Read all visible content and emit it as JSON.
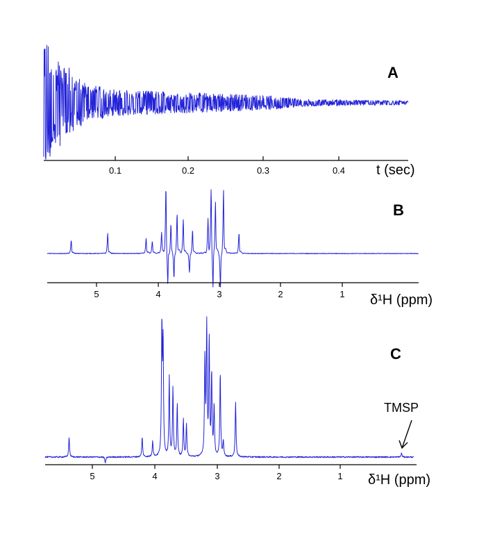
{
  "chart_data": [
    {
      "panel": "A",
      "type": "line",
      "xlabel": "t (sec)",
      "xticks": [
        "0.1",
        "0.2",
        "0.3",
        "0.4"
      ],
      "xlim": [
        0,
        0.49
      ],
      "series": [
        {
          "values_description": "FID envelope amplitude (relative)",
          "x": [
            0.0,
            0.01,
            0.02,
            0.03,
            0.04,
            0.06,
            0.1,
            0.15,
            0.2,
            0.25,
            0.3,
            0.35,
            0.4,
            0.45,
            0.49
          ],
          "y": [
            1.0,
            0.7,
            0.6,
            0.55,
            0.4,
            0.25,
            0.18,
            0.16,
            0.14,
            0.12,
            0.1,
            0.05,
            0.04,
            0.035,
            0.03
          ]
        }
      ]
    },
    {
      "panel": "B",
      "type": "line",
      "xlabel": "δ¹H (ppm)",
      "xticks": [
        "5",
        "4",
        "3",
        "2",
        "1"
      ],
      "xlim": [
        5.8,
        -0.2
      ],
      "series": [
        {
          "values_description": "phase-distorted spectrum (relative intensity)",
          "x": [
            5.41,
            4.82,
            4.2,
            4.1,
            3.95,
            3.88,
            3.85,
            3.8,
            3.75,
            3.7,
            3.6,
            3.5,
            3.45,
            3.2,
            3.15,
            3.12,
            3.08,
            3.0,
            2.95,
            2.7
          ],
          "y": [
            0.2,
            0.3,
            0.22,
            0.18,
            0.3,
            1.0,
            -0.55,
            0.45,
            -0.4,
            0.6,
            0.5,
            -0.3,
            0.35,
            0.5,
            0.95,
            -0.6,
            0.8,
            -0.55,
            0.95,
            0.3
          ]
        }
      ]
    },
    {
      "panel": "C",
      "type": "line",
      "xlabel": "δ¹H (ppm)",
      "xticks": [
        "5",
        "4",
        "3",
        "2",
        "1"
      ],
      "xlim": [
        5.8,
        -0.2
      ],
      "annotations": [
        {
          "text": "TMSP",
          "x": 0.0
        }
      ],
      "series": [
        {
          "values_description": "phased spectrum (relative intensity)",
          "x": [
            5.41,
            4.82,
            4.22,
            4.05,
            3.9,
            3.88,
            3.78,
            3.72,
            3.65,
            3.55,
            3.5,
            3.2,
            3.17,
            3.13,
            3.09,
            3.05,
            2.95,
            2.9,
            2.7,
            0.0
          ],
          "y": [
            0.15,
            -0.05,
            0.15,
            0.12,
            0.98,
            0.85,
            0.6,
            0.52,
            0.4,
            0.28,
            0.25,
            0.74,
            0.97,
            0.88,
            0.62,
            0.38,
            0.64,
            0.12,
            0.42,
            0.03
          ]
        }
      ]
    }
  ]
}
